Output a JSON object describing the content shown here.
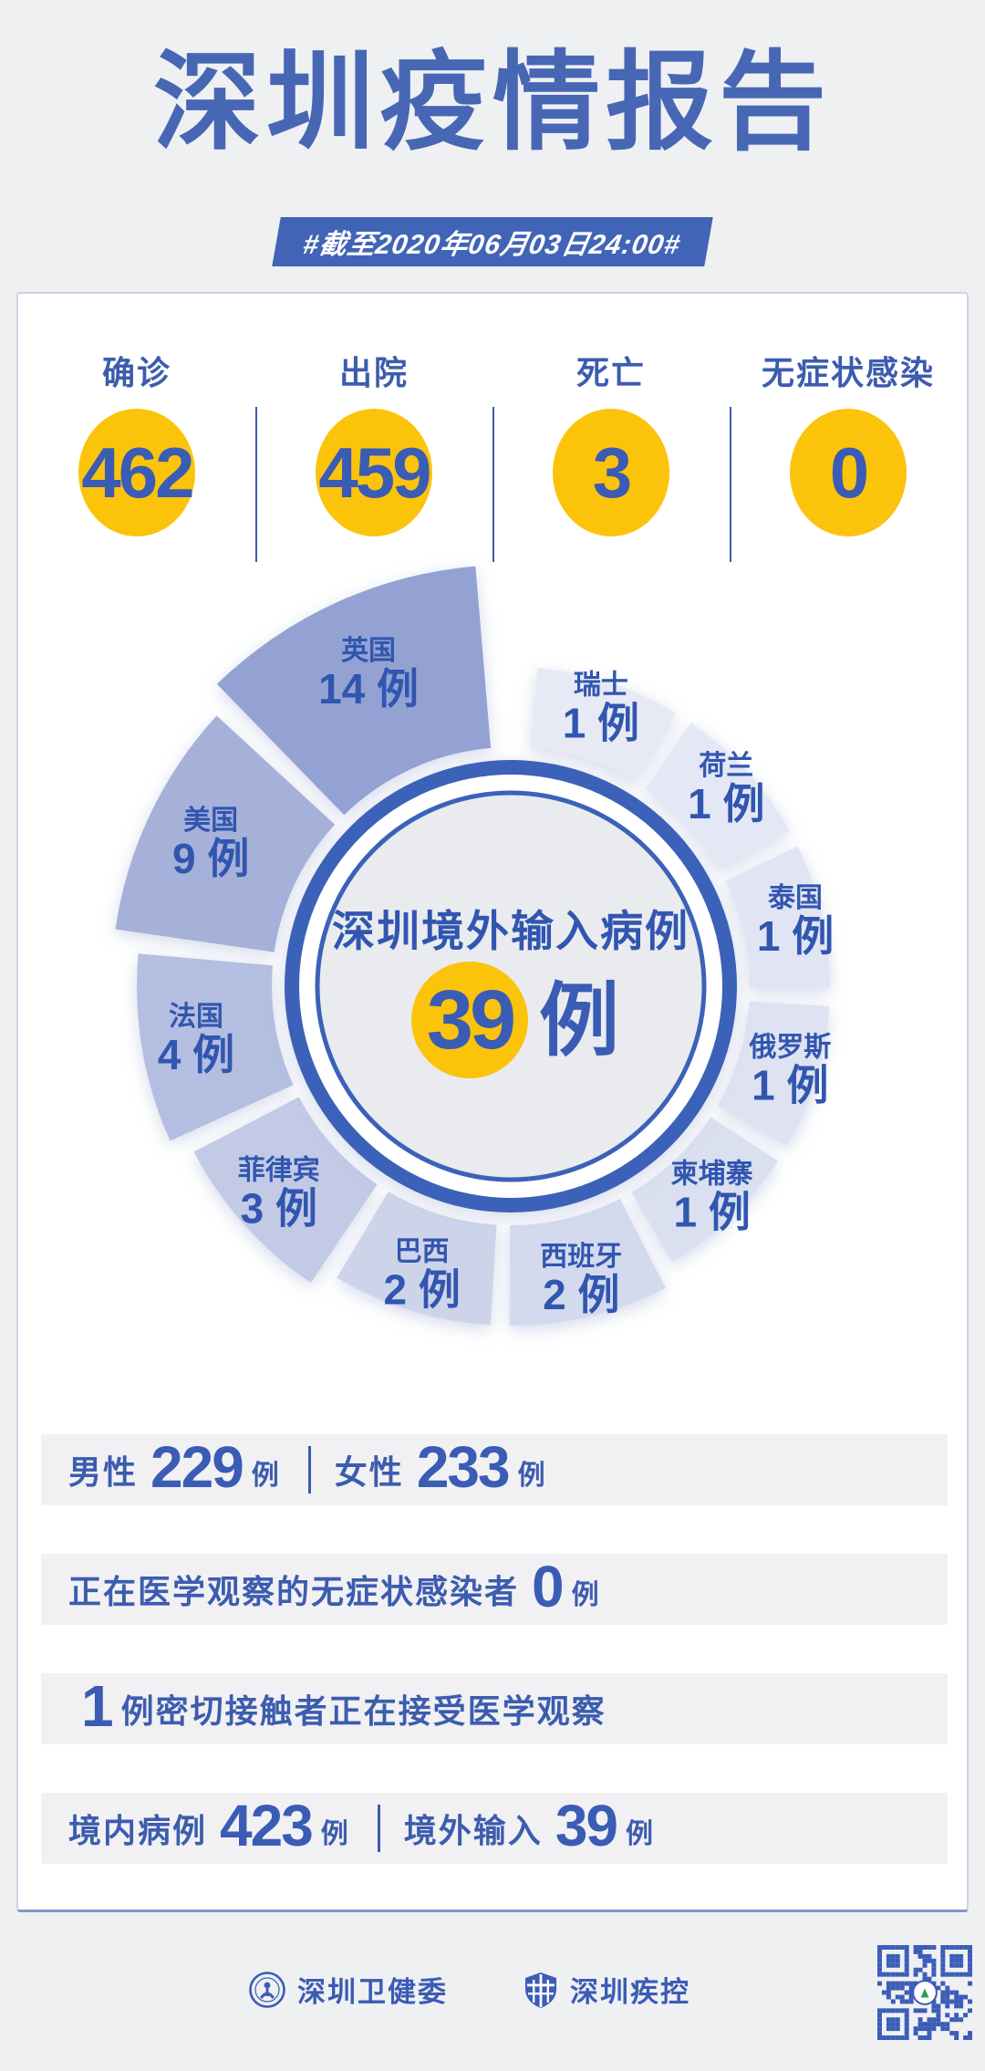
{
  "colors": {
    "page_bg": "#eff0f2",
    "title_blue": "#4767b5",
    "deep_blue": "#3a5cb4",
    "label_blue": "#3c5cae",
    "badge_bg": "#4164b6",
    "yellow": "#fcc30b",
    "card_border": "#ccd3e6",
    "card_border_bottom": "#8296c9",
    "band_bg": "#f1f1f3",
    "ring_blue": "#3a62b8",
    "center_fill": "#e9ebef",
    "chart_text_blue": "#3156b0",
    "qr_blue": "#3b5cb8"
  },
  "header": {
    "title": "深圳疫情报告",
    "date_badge": "#截至2020年06月03日24:00#"
  },
  "stats": {
    "items": [
      {
        "label": "确诊",
        "value": "462"
      },
      {
        "label": "出院",
        "value": "459"
      },
      {
        "label": "死亡",
        "value": "3"
      },
      {
        "label": "无症状感染",
        "value": "0"
      }
    ]
  },
  "chart_data": {
    "type": "pie",
    "title": "深圳境外输入病例",
    "center_label": "深圳境外输入病例",
    "center_value": "39",
    "unit": "例",
    "total": 39,
    "legend_position": "on-slice",
    "slices": [
      {
        "name": "瑞士",
        "value": 1,
        "color": "#e7eaf5"
      },
      {
        "name": "荷兰",
        "value": 1,
        "color": "#e4e7f4"
      },
      {
        "name": "泰国",
        "value": 1,
        "color": "#e1e5f3"
      },
      {
        "name": "俄罗斯",
        "value": 1,
        "color": "#dee2f1"
      },
      {
        "name": "柬埔寨",
        "value": 1,
        "color": "#dae0f0"
      },
      {
        "name": "西班牙",
        "value": 2,
        "color": "#d4daee"
      },
      {
        "name": "巴西",
        "value": 2,
        "color": "#cdd4ea"
      },
      {
        "name": "菲律宾",
        "value": 3,
        "color": "#c2cae6"
      },
      {
        "name": "法国",
        "value": 4,
        "color": "#b4bee0"
      },
      {
        "name": "美国",
        "value": 9,
        "color": "#a6b1d9"
      },
      {
        "name": "英国",
        "value": 14,
        "color": "#93a2d3"
      }
    ],
    "layout": {
      "start_deg": -86,
      "gap_deg": 1.6,
      "inner_r": 262,
      "radius_by_value": {
        "1": 350,
        "2": 372,
        "3": 392,
        "4": 410,
        "9": 438,
        "14": 462
      },
      "sweep_by_value": {
        "1": 28,
        "2": 29,
        "3": 30,
        "4": 31,
        "9": 36,
        "14": 41
      }
    }
  },
  "rows": {
    "r1": {
      "l1": "男性",
      "v1": "229",
      "u1": "例",
      "l2": "女性",
      "v2": "233",
      "u2": "例"
    },
    "r2": {
      "l1": "正在医学观察的无症状感染者",
      "v1": "0",
      "u1": "例"
    },
    "r3": {
      "v1": "1",
      "l1": "例密切接触者正在接受医学观察"
    },
    "r4": {
      "l1": "境内病例",
      "v1": "423",
      "u1": "例",
      "l2": "境外输入",
      "v2": "39",
      "u2": "例"
    }
  },
  "footer": {
    "org1": "深圳卫健委",
    "org2": "深圳疾控"
  }
}
